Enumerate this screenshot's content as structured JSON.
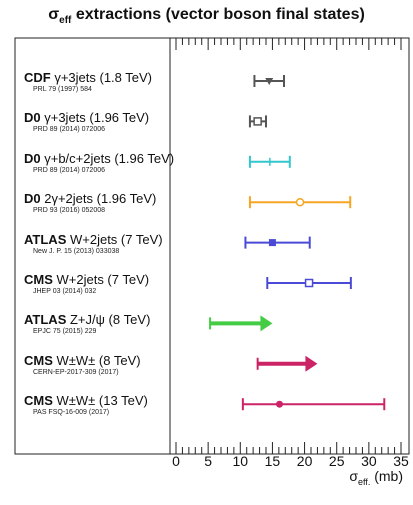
{
  "title_main": "σ",
  "title_sub": "eff",
  "title_rest": " extractions (vector boson final states)",
  "xlabel_main": "σ",
  "xlabel_sub": "eff.",
  "xlabel_unit": " (mb)",
  "measurements": [
    {
      "exp": "CDF",
      "process": "γ+3jets (1.8 TeV)",
      "ref": "PRL 79 (1997) 584",
      "color": "#555555"
    },
    {
      "exp": "D0",
      "process": "γ+3jets (1.96 TeV)",
      "ref": "PRD 89 (2014) 072006",
      "color": "#555555"
    },
    {
      "exp": "D0",
      "process": "γ+b/c+2jets (1.96 TeV)",
      "ref": "PRD 89 (2014) 072006",
      "color": "#33c6cc"
    },
    {
      "exp": "D0",
      "process": "2γ+2jets (1.96 TeV)",
      "ref": "PRD 93 (2016) 052008",
      "color": "#f5a623"
    },
    {
      "exp": "ATLAS",
      "process": "W+2jets (7 TeV)",
      "ref": "New J. P. 15 (2013) 033038",
      "color": "#4a4ad6"
    },
    {
      "exp": "CMS",
      "process": "W+2jets (7 TeV)",
      "ref": "JHEP 03 (2014) 032",
      "color": "#4a4ad6"
    },
    {
      "exp": "ATLAS",
      "process": "Z+J/ψ (8 TeV)",
      "ref": "EPJC 75 (2015) 229",
      "color": "#44cc44"
    },
    {
      "exp": "CMS",
      "process": "W±W± (8 TeV)",
      "ref": "CERN-EP-2017-309 (2017)",
      "color": "#cc2266"
    },
    {
      "exp": "CMS",
      "process": "W±W± (13 TeV)",
      "ref": "PAS FSQ-16-009 (2017)",
      "color": "#cc2266"
    }
  ],
  "chart_data": {
    "type": "scatter",
    "title": "σeff extractions (vector boson final states)",
    "xlabel": "σeff. (mb)",
    "xlim": [
      0,
      35
    ],
    "xticks": [
      "0",
      "5",
      "10",
      "15",
      "20",
      "25",
      "30",
      "35"
    ],
    "points": [
      {
        "label": "CDF γ+3jets (1.8 TeV)",
        "value": 14.5,
        "err_low": 12.2,
        "err_high": 16.8,
        "marker": "triangle"
      },
      {
        "label": "D0 γ+3jets (1.96 TeV)",
        "value": 12.7,
        "err_low": 11.5,
        "err_high": 14.0,
        "marker": "open-square"
      },
      {
        "label": "D0 γ+b/c+2jets (1.96 TeV)",
        "value": 14.6,
        "err_low": 11.5,
        "err_high": 17.7,
        "marker": "tick"
      },
      {
        "label": "D0 2γ+2jets (1.96 TeV)",
        "value": 19.3,
        "err_low": 11.5,
        "err_high": 27.1,
        "marker": "open-circle"
      },
      {
        "label": "ATLAS W+2jets (7 TeV)",
        "value": 15.0,
        "err_low": 10.8,
        "err_high": 20.8,
        "marker": "square"
      },
      {
        "label": "CMS W+2jets (7 TeV)",
        "value": 20.7,
        "err_low": 14.2,
        "err_high": 27.2,
        "marker": "open-square"
      },
      {
        "label": "ATLAS Z+J/ψ (8 TeV)",
        "value": 5.3,
        "arrow_to": 15.0,
        "marker": "arrow"
      },
      {
        "label": "CMS W±W± (8 TeV)",
        "value": 12.7,
        "arrow_to": 22.0,
        "marker": "arrow"
      },
      {
        "label": "CMS W±W± (13 TeV)",
        "value": 16.1,
        "err_low": 10.4,
        "err_high": 32.4,
        "marker": "circle"
      }
    ],
    "grid": false
  }
}
